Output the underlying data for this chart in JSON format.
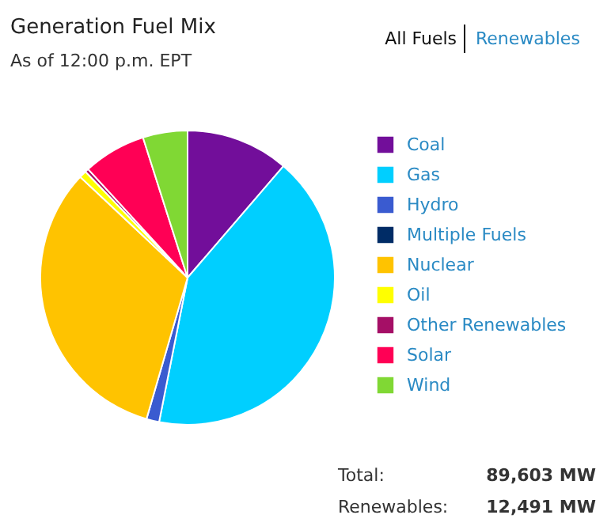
{
  "chart_data": {
    "type": "pie",
    "title": "Generation Fuel Mix",
    "subtitle": "As of 12:00 p.m. EPT",
    "categories": [
      "Coal",
      "Gas",
      "Hydro",
      "Multiple Fuels",
      "Nuclear",
      "Oil",
      "Other Renewables",
      "Solar",
      "Wind"
    ],
    "values": [
      11.3,
      41.8,
      1.4,
      null,
      32.5,
      0.8,
      0.4,
      6.9,
      4.9
    ],
    "colors": [
      "#720e9a",
      "#00cfff",
      "#3a5bd0",
      "#002c66",
      "#ffc300",
      "#ffff00",
      "#a50f66",
      "#ff0055",
      "#80d834"
    ],
    "legend": "right",
    "annotations": [
      "All Fuels",
      "Renewables",
      "Total:",
      "89,603 MW",
      "Renewables:",
      "12,491 MW"
    ]
  }
}
